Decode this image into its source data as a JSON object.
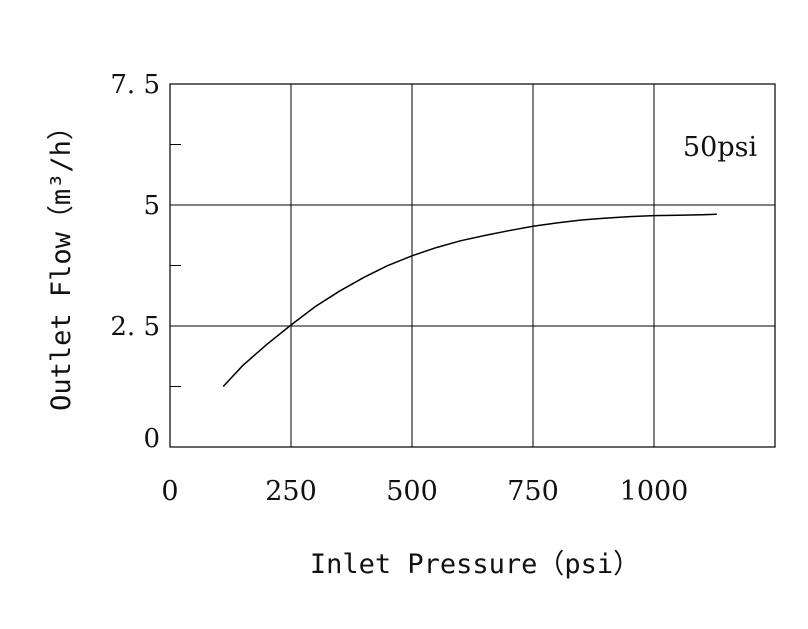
{
  "chart_data": {
    "type": "line",
    "xlabel": "Inlet Pressure（psi）",
    "ylabel": "Outlet Flow（m³/h）",
    "xlim": [
      0,
      1250
    ],
    "ylim": [
      0,
      7.5
    ],
    "x_ticks": [
      {
        "value": 0,
        "label": "0"
      },
      {
        "value": 250,
        "label": "250"
      },
      {
        "value": 500,
        "label": "500"
      },
      {
        "value": 750,
        "label": "750"
      },
      {
        "value": 1000,
        "label": "1000"
      }
    ],
    "y_ticks": [
      {
        "value": 0,
        "label": "0"
      },
      {
        "value": 2.5,
        "label": "2. 5"
      },
      {
        "value": 5,
        "label": "5"
      },
      {
        "value": 7.5,
        "label": "7. 5"
      }
    ],
    "y_minor_ticks": [
      1.25,
      3.75,
      6.25
    ],
    "grid": true,
    "annotation": "50psi",
    "series": [
      {
        "x": [
          110,
          150,
          200,
          250,
          300,
          350,
          400,
          450,
          500,
          550,
          600,
          650,
          700,
          750,
          800,
          850,
          900,
          950,
          1000,
          1050,
          1100,
          1130
        ],
        "y": [
          1.25,
          1.68,
          2.12,
          2.52,
          2.9,
          3.22,
          3.5,
          3.75,
          3.95,
          4.12,
          4.26,
          4.37,
          4.47,
          4.56,
          4.63,
          4.69,
          4.73,
          4.76,
          4.78,
          4.79,
          4.8,
          4.81
        ]
      }
    ]
  }
}
